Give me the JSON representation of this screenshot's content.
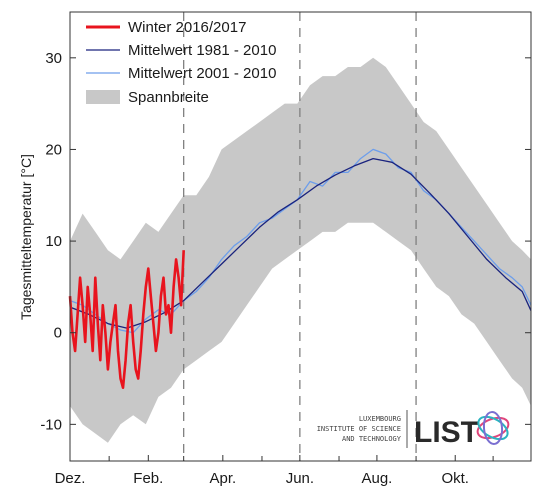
{
  "chart_data": {
    "type": "line",
    "ylabel": "Tagesmitteltemperatur [°C]",
    "xlabel": "",
    "xlim": [
      0,
      365
    ],
    "ylim": [
      -14,
      35
    ],
    "y_ticks": [
      -10,
      0,
      10,
      20,
      30
    ],
    "x_tick_labels": [
      {
        "label": "Dez.",
        "day": 0
      },
      {
        "label": "Feb.",
        "day": 62
      },
      {
        "label": "Apr.",
        "day": 121
      },
      {
        "label": "Jun.",
        "day": 182
      },
      {
        "label": "Aug.",
        "day": 243
      },
      {
        "label": "Okt.",
        "day": 305
      }
    ],
    "minor_x_ticks": [
      31,
      90,
      152,
      213,
      274,
      335
    ],
    "vertical_dashed_lines": [
      90,
      182,
      274
    ],
    "legend": {
      "placement": "top-left"
    },
    "series": [
      {
        "name": "Winter 2016/2017",
        "color": "#e8141e",
        "x": [
          0,
          2,
          4,
          6,
          8,
          10,
          12,
          14,
          16,
          18,
          20,
          22,
          24,
          26,
          28,
          30,
          32,
          34,
          36,
          38,
          40,
          42,
          44,
          46,
          48,
          50,
          52,
          54,
          56,
          58,
          60,
          62,
          64,
          66,
          68,
          70,
          72,
          74,
          76,
          78,
          80,
          82,
          84,
          86,
          88,
          90
        ],
        "values": [
          4,
          0,
          -2,
          2,
          6,
          3,
          -1,
          5,
          2,
          -2,
          6,
          1,
          -3,
          3,
          0,
          -4,
          -1,
          1,
          3,
          -2,
          -5,
          -6,
          -3,
          1,
          3,
          -1,
          -4,
          -5,
          -2,
          2,
          5,
          7,
          4,
          1,
          -2,
          0,
          4,
          6,
          2,
          3,
          0,
          5,
          8,
          6,
          3,
          9
        ]
      },
      {
        "name": "Mittelwert 1981 - 2010",
        "color": "#1a237e",
        "x": [
          0,
          15,
          30,
          45,
          60,
          75,
          90,
          105,
          120,
          135,
          150,
          165,
          180,
          195,
          210,
          225,
          240,
          255,
          270,
          285,
          300,
          315,
          330,
          345,
          358,
          365
        ],
        "values": [
          2.8,
          2.0,
          1.0,
          0.5,
          1.2,
          2.2,
          3.5,
          5.5,
          7.5,
          9.5,
          11.5,
          13.2,
          14.5,
          16.0,
          17.2,
          18.2,
          19.0,
          18.6,
          17.3,
          15.2,
          13.0,
          10.5,
          8.0,
          6.0,
          4.5,
          2.4
        ]
      },
      {
        "name": "Mittelwert 2001 - 2010",
        "color": "#6d9eeb",
        "x": [
          0,
          10,
          20,
          30,
          40,
          50,
          60,
          70,
          80,
          90,
          100,
          110,
          120,
          130,
          140,
          150,
          160,
          170,
          180,
          190,
          200,
          210,
          220,
          230,
          240,
          250,
          260,
          270,
          280,
          290,
          300,
          310,
          320,
          330,
          340,
          350,
          358,
          365
        ],
        "values": [
          3.5,
          3.0,
          2.0,
          1.0,
          0.3,
          0.0,
          1.5,
          2.5,
          2.0,
          3.5,
          4.5,
          6.0,
          8.0,
          9.5,
          10.5,
          12.0,
          12.5,
          13.5,
          14.5,
          16.5,
          16.0,
          17.5,
          17.5,
          19.0,
          20.0,
          19.5,
          18.0,
          17.5,
          15.5,
          14.5,
          13.0,
          11.5,
          10.0,
          8.5,
          7.0,
          6.0,
          5.0,
          3.0
        ]
      }
    ],
    "band": {
      "name": "Spannbreite",
      "color": "#c8c8c8",
      "x": [
        0,
        10,
        20,
        30,
        40,
        50,
        60,
        70,
        80,
        90,
        100,
        110,
        120,
        130,
        140,
        150,
        160,
        170,
        180,
        190,
        200,
        210,
        220,
        230,
        240,
        250,
        260,
        270,
        280,
        290,
        300,
        310,
        320,
        330,
        340,
        350,
        358,
        365
      ],
      "upper": [
        10,
        13,
        11,
        9,
        8,
        10,
        12,
        11,
        13,
        15,
        15,
        17,
        20,
        21,
        22,
        23,
        24,
        25,
        25,
        27,
        28,
        28,
        29,
        29,
        30,
        29,
        27,
        25,
        23,
        22,
        20,
        18,
        16,
        14,
        12,
        10,
        9,
        8
      ],
      "lower": [
        -8,
        -10,
        -11,
        -12,
        -10,
        -9,
        -10,
        -7,
        -6,
        -4,
        -3,
        -2,
        -1,
        1,
        3,
        5,
        7,
        8,
        9,
        10,
        11,
        11,
        12,
        12,
        12,
        11,
        10,
        9,
        7,
        5,
        4,
        2,
        1,
        -1,
        -3,
        -5,
        -6,
        -8
      ]
    }
  },
  "logo": {
    "line1": "LUXEMBOURG",
    "line2": "INSTITUTE OF SCIENCE",
    "line3": "AND TECHNOLOGY",
    "wordmark": "LIST"
  }
}
